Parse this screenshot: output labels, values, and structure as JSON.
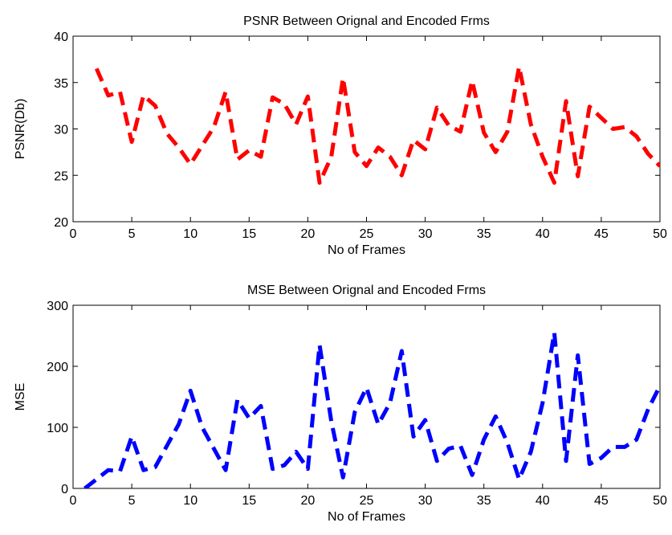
{
  "chart_data": [
    {
      "type": "line",
      "title": "PSNR Between Orignal and Encoded Frms",
      "xlabel": "No of Frames",
      "ylabel": "PSNR(Db)",
      "xlim": [
        0,
        50
      ],
      "ylim": [
        20,
        40
      ],
      "xticks": [
        0,
        5,
        10,
        15,
        20,
        25,
        30,
        35,
        40,
        45,
        50
      ],
      "yticks": [
        20,
        25,
        30,
        35,
        40
      ],
      "grid": false,
      "series": [
        {
          "color": "#ff0000",
          "line_style": "dashed",
          "x": [
            2,
            3,
            4,
            5,
            6,
            7,
            8,
            9,
            10,
            11,
            12,
            13,
            14,
            15,
            16,
            17,
            18,
            19,
            20,
            21,
            22,
            23,
            24,
            25,
            26,
            27,
            28,
            29,
            30,
            31,
            32,
            33,
            34,
            35,
            36,
            37,
            38,
            39,
            40,
            41,
            42,
            43,
            44,
            45,
            46,
            47,
            48,
            49,
            50
          ],
          "y": [
            36.5,
            33.6,
            34.0,
            28.6,
            33.6,
            32.5,
            29.5,
            28.0,
            26.2,
            28.2,
            30.2,
            34.0,
            26.7,
            27.7,
            27.0,
            33.4,
            32.7,
            30.5,
            33.5,
            24.2,
            27.0,
            35.5,
            27.5,
            26.0,
            28.0,
            27.0,
            25.0,
            28.8,
            27.8,
            32.3,
            30.4,
            29.7,
            35.2,
            29.6,
            27.5,
            29.7,
            36.7,
            30.5,
            27.0,
            24.2,
            33.0,
            24.9,
            32.4,
            31.2,
            30.0,
            30.2,
            29.2,
            27.3,
            26.0
          ]
        }
      ]
    },
    {
      "type": "line",
      "title": "MSE Between Orignal and Encoded Frms",
      "xlabel": "No of Frames",
      "ylabel": "MSE",
      "xlim": [
        0,
        50
      ],
      "ylim": [
        0,
        300
      ],
      "xticks": [
        0,
        5,
        10,
        15,
        20,
        25,
        30,
        35,
        40,
        45,
        50
      ],
      "yticks": [
        0,
        100,
        200,
        300
      ],
      "grid": false,
      "series": [
        {
          "color": "#0000ff",
          "line_style": "dashed",
          "x": [
            1,
            2,
            3,
            4,
            5,
            6,
            7,
            8,
            9,
            10,
            11,
            12,
            13,
            14,
            15,
            16,
            17,
            18,
            19,
            20,
            21,
            22,
            23,
            24,
            25,
            26,
            27,
            28,
            29,
            30,
            31,
            32,
            33,
            34,
            35,
            36,
            37,
            38,
            39,
            40,
            41,
            42,
            43,
            44,
            45,
            46,
            47,
            48,
            49,
            50
          ],
          "y": [
            0,
            15,
            30,
            28,
            85,
            30,
            35,
            70,
            105,
            160,
            100,
            65,
            30,
            145,
            115,
            135,
            32,
            38,
            60,
            32,
            235,
            110,
            18,
            125,
            165,
            105,
            140,
            225,
            85,
            112,
            45,
            65,
            70,
            22,
            80,
            118,
            75,
            15,
            60,
            140,
            255,
            45,
            218,
            40,
            50,
            68,
            68,
            80,
            130,
            168
          ]
        }
      ]
    }
  ]
}
